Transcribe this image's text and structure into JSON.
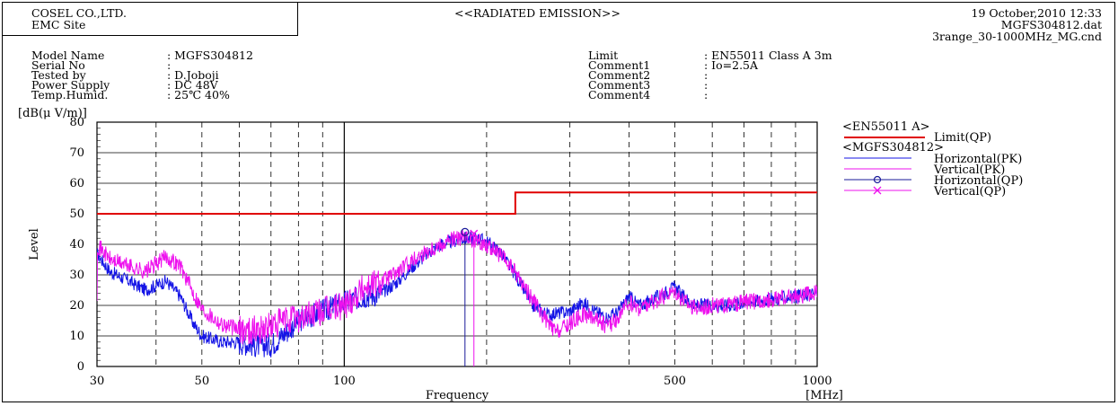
{
  "header": {
    "company": "COSEL CO.,LTD.",
    "site": "EMC Site",
    "title": "<<RADIATED EMISSION>>",
    "datetime": "19 October,2010 12:33",
    "data_file": "MGFS304812.dat",
    "cond_file": "3range_30-1000MHz_MG.cnd"
  },
  "info_left": [
    {
      "label": "Model Name",
      "value": ": MGFS304812"
    },
    {
      "label": "Serial No",
      "value": ":"
    },
    {
      "label": "Tested by",
      "value": ": D.Joboji"
    },
    {
      "label": "Power Supply",
      "value": ": DC 48V"
    },
    {
      "label": "Temp.Humid.",
      "value": ": 25℃ 40%"
    }
  ],
  "info_right": [
    {
      "label": "Limit",
      "value": ": EN55011 Class A 3m"
    },
    {
      "label": "Comment1",
      "value": ": Io=2.5A"
    },
    {
      "label": "Comment2",
      "value": ":"
    },
    {
      "label": "Comment3",
      "value": ":"
    },
    {
      "label": "Comment4",
      "value": ":"
    }
  ],
  "legend": {
    "group1": "<EN55011 A>",
    "limit": "Limit(QP)",
    "group2": "<MGFS304812>",
    "hpk": "Horizontal(PK)",
    "vpk": "Vertical(PK)",
    "hqp": "Horizontal(QP)",
    "vqp": "Vertical(QP)"
  },
  "colors": {
    "limit": "#e00000",
    "horizontal": "#1414e6",
    "vertical": "#ee11ee",
    "horizontal_qp": "#1a1a9a"
  },
  "chart_data": {
    "type": "line",
    "title": "<<RADIATED EMISSION>>",
    "xlabel": "Frequency",
    "xunit": "[MHz]",
    "ylabel": "Level",
    "yunit": "[dB(μ V/m)]",
    "x_scale": "log",
    "xlim": [
      30,
      1000
    ],
    "ylim": [
      0,
      80
    ],
    "x_ticks": [
      30,
      50,
      100,
      500,
      1000
    ],
    "y_ticks": [
      0,
      10,
      20,
      30,
      40,
      50,
      60,
      70,
      80
    ],
    "grid": true,
    "legend_position": "right",
    "series": [
      {
        "name": "Limit(QP)",
        "kind": "step",
        "points": [
          [
            30,
            50
          ],
          [
            230,
            50
          ],
          [
            230,
            57
          ],
          [
            1000,
            57
          ]
        ]
      },
      {
        "name": "Horizontal(PK)",
        "points": [
          [
            30,
            37
          ],
          [
            32,
            31
          ],
          [
            35,
            28
          ],
          [
            38,
            25
          ],
          [
            42,
            28
          ],
          [
            45,
            23
          ],
          [
            48,
            14
          ],
          [
            50,
            10
          ],
          [
            55,
            8
          ],
          [
            60,
            8
          ],
          [
            65,
            7
          ],
          [
            70,
            7
          ],
          [
            75,
            11
          ],
          [
            80,
            15
          ],
          [
            90,
            18
          ],
          [
            100,
            21
          ],
          [
            110,
            23
          ],
          [
            120,
            24
          ],
          [
            130,
            28
          ],
          [
            140,
            33
          ],
          [
            150,
            37
          ],
          [
            160,
            40
          ],
          [
            170,
            41
          ],
          [
            180,
            42
          ],
          [
            190,
            42
          ],
          [
            200,
            41
          ],
          [
            215,
            37
          ],
          [
            230,
            30
          ],
          [
            250,
            20
          ],
          [
            270,
            17
          ],
          [
            300,
            18
          ],
          [
            320,
            21
          ],
          [
            340,
            18
          ],
          [
            360,
            16
          ],
          [
            380,
            18
          ],
          [
            400,
            23
          ],
          [
            420,
            20
          ],
          [
            450,
            22
          ],
          [
            500,
            26
          ],
          [
            520,
            23
          ],
          [
            550,
            20
          ],
          [
            600,
            20
          ],
          [
            650,
            20
          ],
          [
            700,
            21
          ],
          [
            800,
            22
          ],
          [
            900,
            23
          ],
          [
            1000,
            24
          ]
        ]
      },
      {
        "name": "Vertical(PK)",
        "points": [
          [
            30,
            40
          ],
          [
            32,
            35
          ],
          [
            35,
            33
          ],
          [
            38,
            31
          ],
          [
            42,
            36
          ],
          [
            45,
            33
          ],
          [
            48,
            24
          ],
          [
            50,
            19
          ],
          [
            55,
            14
          ],
          [
            60,
            12
          ],
          [
            65,
            12
          ],
          [
            70,
            13
          ],
          [
            75,
            15
          ],
          [
            80,
            16
          ],
          [
            90,
            18
          ],
          [
            100,
            20
          ],
          [
            110,
            26
          ],
          [
            120,
            28
          ],
          [
            130,
            31
          ],
          [
            140,
            35
          ],
          [
            150,
            38
          ],
          [
            160,
            40
          ],
          [
            170,
            42
          ],
          [
            180,
            42
          ],
          [
            190,
            41
          ],
          [
            200,
            40
          ],
          [
            215,
            36
          ],
          [
            230,
            31
          ],
          [
            250,
            22
          ],
          [
            270,
            14
          ],
          [
            280,
            11
          ],
          [
            300,
            14
          ],
          [
            320,
            17
          ],
          [
            340,
            16
          ],
          [
            360,
            13
          ],
          [
            380,
            16
          ],
          [
            400,
            21
          ],
          [
            420,
            19
          ],
          [
            450,
            21
          ],
          [
            500,
            25
          ],
          [
            520,
            22
          ],
          [
            550,
            19
          ],
          [
            600,
            20
          ],
          [
            650,
            20
          ],
          [
            700,
            21
          ],
          [
            800,
            22
          ],
          [
            900,
            23
          ],
          [
            1000,
            24
          ]
        ]
      },
      {
        "name": "Horizontal(QP)",
        "kind": "marker",
        "x": 180,
        "y": 44
      },
      {
        "name": "Vertical(QP)",
        "kind": "marker",
        "x": 188,
        "y": 43.5
      }
    ]
  }
}
